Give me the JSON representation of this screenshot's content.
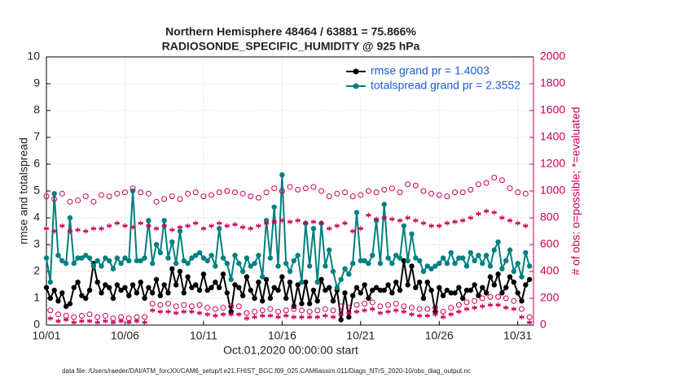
{
  "chart_data": {
    "type": "line",
    "title": "Northern Hemisphere 48464 / 63881 = 75.866%",
    "subtitle": "RADIOSONDE_SPECIFIC_HUMIDITY @ 925 hPa",
    "x_label": "Oct.01,2020 00:00:00 start",
    "y_label": "rmse and totalspread",
    "y2_label": "# of obs: o=possible; *=evaluated",
    "footnote": "data file: /Users/raeder/DAI/ATM_forcXX/CAM6_setup/f.e21.FHIST_BGC.f09_025.CAM6assim.011/Diags_NTrS_2020-10/obs_diag_output.nc",
    "xlim": [
      0,
      31
    ],
    "xticks": [
      {
        "value": 0,
        "label": "10/01"
      },
      {
        "value": 5,
        "label": "10/06"
      },
      {
        "value": 10,
        "label": "10/11"
      },
      {
        "value": 15,
        "label": "10/16"
      },
      {
        "value": 20,
        "label": "10/21"
      },
      {
        "value": 25,
        "label": "10/26"
      },
      {
        "value": 30,
        "label": "10/31"
      }
    ],
    "ylim": [
      0,
      10
    ],
    "yticks": [
      0,
      1,
      2,
      3,
      4,
      5,
      6,
      7,
      8,
      9,
      10
    ],
    "y2lim": [
      0,
      2000
    ],
    "y2ticks": [
      0,
      200,
      400,
      600,
      800,
      1000,
      1200,
      1400,
      1600,
      1800,
      2000
    ],
    "grid": true,
    "legend": "upper right",
    "x": [
      0,
      0.25,
      0.5,
      0.75,
      1,
      1.25,
      1.5,
      1.75,
      2,
      2.25,
      2.5,
      2.75,
      3,
      3.25,
      3.5,
      3.75,
      4,
      4.25,
      4.5,
      4.75,
      5,
      5.25,
      5.5,
      5.75,
      6,
      6.25,
      6.5,
      6.75,
      7,
      7.25,
      7.5,
      7.75,
      8,
      8.25,
      8.5,
      8.75,
      9,
      9.25,
      9.5,
      9.75,
      10,
      10.25,
      10.5,
      10.75,
      11,
      11.25,
      11.5,
      11.75,
      12,
      12.25,
      12.5,
      12.75,
      13,
      13.25,
      13.5,
      13.75,
      14,
      14.25,
      14.5,
      14.75,
      15,
      15.25,
      15.5,
      15.75,
      16,
      16.25,
      16.5,
      16.75,
      17,
      17.25,
      17.5,
      17.75,
      18,
      18.25,
      18.5,
      18.75,
      19,
      19.25,
      19.5,
      19.75,
      20,
      20.25,
      20.5,
      20.75,
      21,
      21.25,
      21.5,
      21.75,
      22,
      22.25,
      22.5,
      22.75,
      23,
      23.25,
      23.5,
      23.75,
      24,
      24.25,
      24.5,
      24.75,
      25,
      25.25,
      25.5,
      25.75,
      26,
      26.25,
      26.5,
      26.75,
      27,
      27.25,
      27.5,
      27.75,
      28,
      28.25,
      28.5,
      28.75,
      29,
      29.25,
      29.5,
      29.75,
      30,
      30.25,
      30.5,
      30.75
    ],
    "series": [
      {
        "name": "rmse grand pr = 1.4003",
        "color": "#000000",
        "marker": "dot",
        "axis": "y",
        "values": [
          1.4,
          1.0,
          1.3,
          0.9,
          1.2,
          0.7,
          0.8,
          1.4,
          1.6,
          1.1,
          1.0,
          1.3,
          2.3,
          1.6,
          1.2,
          1.5,
          1.4,
          1.0,
          1.5,
          1.3,
          1.4,
          1.1,
          1.5,
          1.2,
          1.6,
          1.0,
          1.4,
          1.2,
          1.7,
          1.1,
          1.5,
          1.2,
          2.1,
          1.5,
          2.0,
          1.2,
          1.8,
          1.4,
          1.5,
          1.3,
          1.9,
          1.3,
          1.4,
          1.6,
          1.4,
          1.9,
          1.2,
          0.5,
          1.5,
          1.4,
          1.1,
          1.8,
          1.3,
          1.0,
          1.6,
          0.9,
          1.7,
          1.0,
          1.4,
          1.3,
          1.8,
          1.0,
          1.6,
          0.7,
          1.5,
          0.8,
          1.6,
          0.8,
          1.3,
          0.9,
          1.7,
          1.3,
          1.4,
          0.9,
          1.3,
          0.2,
          1.2,
          0.3,
          1.1,
          1.4,
          1.2,
          1.5,
          1.0,
          1.3,
          1.4,
          1.3,
          1.3,
          1.5,
          1.2,
          1.6,
          1.3,
          2.4,
          1.5,
          2.2,
          1.4,
          1.6,
          1.0,
          1.6,
          1.3,
          0.5,
          1.4,
          1.1,
          1.3,
          1.2,
          1.2,
          1.4,
          1.0,
          1.3,
          1.3,
          1.5,
          1.1,
          1.4,
          1.2,
          1.8,
          1.5,
          1.9,
          1.2,
          1.4,
          1.8,
          1.6,
          1.2,
          0.9,
          1.5,
          1.7
        ]
      },
      {
        "name": "totalspread grand pr = 2.3552",
        "color": "#008080",
        "marker": "dot",
        "axis": "y",
        "values": [
          2.5,
          1.6,
          4.9,
          2.6,
          2.4,
          2.3,
          4.0,
          2.3,
          2.5,
          2.5,
          2.6,
          2.5,
          2.2,
          2.4,
          2.2,
          2.5,
          2.4,
          2.1,
          2.5,
          2.3,
          2.5,
          2.4,
          5.0,
          2.4,
          2.4,
          2.5,
          3.9,
          2.3,
          3.0,
          2.7,
          3.9,
          2.5,
          3.1,
          2.3,
          3.5,
          2.4,
          2.3,
          2.5,
          2.6,
          2.7,
          2.5,
          2.4,
          2.6,
          2.2,
          3.6,
          2.5,
          2.3,
          1.7,
          2.6,
          2.3,
          2.0,
          2.5,
          2.2,
          2.3,
          2.6,
          1.8,
          3.9,
          2.5,
          4.4,
          2.2,
          5.6,
          2.3,
          2.0,
          2.4,
          2.6,
          1.6,
          3.8,
          2.2,
          3.6,
          1.6,
          3.8,
          2.2,
          2.8,
          2.0,
          1.4,
          1.7,
          2.1,
          1.9,
          2.3,
          4.2,
          2.4,
          2.4,
          2.3,
          2.6,
          3.9,
          2.3,
          4.5,
          2.5,
          2.3,
          2.6,
          2.5,
          3.7,
          2.4,
          3.4,
          2.5,
          2.4,
          2.0,
          2.2,
          2.1,
          2.2,
          2.3,
          2.5,
          2.3,
          2.7,
          2.3,
          2.5,
          2.5,
          2.2,
          2.7,
          2.4,
          2.6,
          2.3,
          2.6,
          2.2,
          2.8,
          3.1,
          2.1,
          2.4,
          2.8,
          2.0,
          2.3,
          1.8,
          2.7,
          2.2
        ]
      },
      {
        "color": "#cc0055",
        "marker": "circle",
        "axis": "y2",
        "values": [
          960,
          110,
          940,
          80,
          980,
          70,
          920,
          60,
          930,
          70,
          960,
          80,
          920,
          60,
          970,
          70,
          960,
          50,
          980,
          60,
          990,
          50,
          1020,
          60,
          990,
          60,
          980,
          160,
          920,
          150,
          940,
          160,
          960,
          140,
          940,
          150,
          980,
          140,
          990,
          150,
          960,
          130,
          970,
          120,
          990,
          130,
          1000,
          140,
          990,
          140,
          980,
          90,
          960,
          100,
          950,
          110,
          990,
          120,
          1020,
          100,
          1000,
          110,
          1030,
          120,
          1010,
          110,
          1020,
          100,
          1030,
          110,
          1000,
          120,
          960,
          110,
          980,
          140,
          990,
          130,
          960,
          150,
          970,
          160,
          1000,
          170,
          990,
          140,
          1010,
          150,
          1020,
          160,
          990,
          140,
          1050,
          130,
          1040,
          120,
          1000,
          120,
          980,
          130,
          970,
          100,
          960,
          130,
          990,
          150,
          990,
          170,
          1010,
          180,
          1050,
          200,
          1060,
          210,
          1100,
          210,
          1080,
          200,
          1020,
          180,
          990,
          120,
          980,
          60
        ]
      },
      {
        "color": "#cc0055",
        "marker": "asterisk",
        "axis": "y2",
        "values": [
          720,
          50,
          700,
          30,
          740,
          40,
          700,
          20,
          710,
          30,
          700,
          30,
          720,
          20,
          720,
          30,
          740,
          20,
          760,
          30,
          740,
          20,
          730,
          30,
          760,
          20,
          740,
          110,
          720,
          100,
          740,
          100,
          710,
          90,
          730,
          100,
          740,
          100,
          760,
          90,
          720,
          80,
          740,
          70,
          760,
          80,
          740,
          80,
          750,
          80,
          730,
          50,
          720,
          60,
          740,
          70,
          760,
          70,
          770,
          60,
          780,
          70,
          770,
          60,
          780,
          60,
          760,
          60,
          770,
          60,
          760,
          70,
          720,
          60,
          740,
          80,
          760,
          90,
          700,
          100,
          720,
          110,
          820,
          120,
          790,
          90,
          800,
          100,
          790,
          110,
          780,
          100,
          800,
          80,
          780,
          70,
          760,
          70,
          740,
          80,
          740,
          60,
          760,
          80,
          770,
          100,
          780,
          120,
          800,
          130,
          830,
          140,
          850,
          150,
          840,
          150,
          800,
          130,
          780,
          120,
          760,
          60,
          740,
          20
        ]
      }
    ]
  }
}
